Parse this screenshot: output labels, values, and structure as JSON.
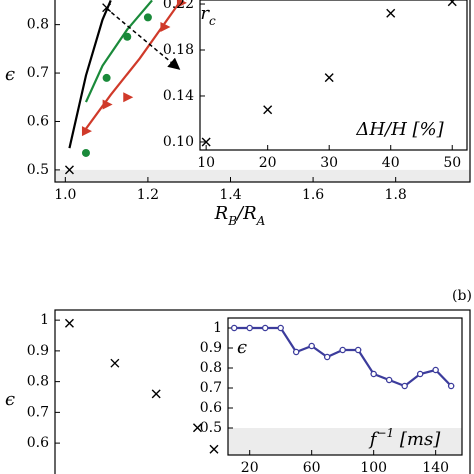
{
  "chart_data": [
    {
      "type": "line",
      "panel": "top-main",
      "x_label": [
        {
          "text": "R"
        },
        {
          "text": "B",
          "pos": "sub"
        },
        {
          "text": "/R"
        },
        {
          "text": "A",
          "pos": "sub"
        }
      ],
      "y_label": [
        {
          "text": "ϵ"
        }
      ],
      "xlim": [
        0.975,
        1.98
      ],
      "ylim": [
        0.475,
        0.855
      ],
      "xticks": [
        {
          "value": 1.0,
          "label": "1.0"
        },
        1.2,
        1.4,
        1.6,
        1.8
      ],
      "yticks": [
        0.5,
        0.6,
        0.7,
        0.8
      ],
      "shaded_below": 0.5,
      "series": [
        {
          "kind": "line",
          "color": "#000000",
          "x": [
            1.01,
            1.05,
            1.09,
            1.11
          ],
          "values": [
            0.545,
            0.695,
            0.81,
            0.85
          ]
        },
        {
          "kind": "line",
          "color": "#1a8a3a",
          "x": [
            1.05,
            1.09,
            1.15,
            1.21
          ],
          "values": [
            0.64,
            0.715,
            0.79,
            0.85
          ]
        },
        {
          "kind": "line",
          "color": "#d03a2a",
          "x": [
            1.05,
            1.11,
            1.18,
            1.28
          ],
          "values": [
            0.585,
            0.655,
            0.73,
            0.85
          ]
        },
        {
          "kind": "markers",
          "marker": "x",
          "color": "#000000",
          "x": [
            1.01,
            1.1
          ],
          "values": [
            0.5,
            0.835
          ]
        },
        {
          "kind": "markers",
          "marker": "circle",
          "color": "#1a8a3a",
          "x": [
            1.05,
            1.1,
            1.15,
            1.2
          ],
          "values": [
            0.535,
            0.69,
            0.775,
            0.815
          ]
        },
        {
          "kind": "markers",
          "marker": "triangle",
          "color": "#d03a2a",
          "x": [
            1.05,
            1.1,
            1.15,
            1.24,
            1.28
          ],
          "values": [
            0.58,
            0.635,
            0.65,
            0.795,
            0.845
          ]
        }
      ]
    },
    {
      "type": "scatter",
      "panel": "top-inset",
      "x_label": [
        {
          "text": "ΔH/H [%]"
        }
      ],
      "y_label": [
        {
          "text": "r"
        },
        {
          "text": "c",
          "pos": "sub"
        }
      ],
      "xlim": [
        9,
        52.4
      ],
      "ylim": [
        0.093,
        0.2235
      ],
      "xticks": [
        10,
        20,
        30,
        40,
        50
      ],
      "yticks": [
        {
          "value": 0.1,
          "label": "0.10"
        },
        0.14,
        0.18,
        0.22
      ],
      "series": [
        {
          "kind": "markers",
          "marker": "x",
          "color": "#000000",
          "x": [
            10,
            20,
            30,
            40,
            50
          ],
          "values": [
            0.1,
            0.128,
            0.156,
            0.212,
            0.222
          ]
        }
      ]
    },
    {
      "type": "scatter",
      "panel": "bottom-main",
      "panel_label": "(b)",
      "y_label": [
        {
          "text": "ϵ"
        }
      ],
      "xlim": [
        0.975,
        1.98
      ],
      "ylim": [
        0.48,
        1.033
      ],
      "yticks": [
        1,
        0.9,
        0.8,
        0.7,
        0.6
      ],
      "series": [
        {
          "kind": "markers",
          "marker": "x",
          "color": "#000000",
          "x": [
            1.01,
            1.12,
            1.22,
            1.32,
            1.36
          ],
          "values": [
            0.99,
            0.86,
            0.76,
            0.65,
            0.58
          ]
        }
      ]
    },
    {
      "type": "line",
      "panel": "bottom-inset",
      "x_label": [
        {
          "text": "f"
        },
        {
          "text": "−1",
          "pos": "sup"
        },
        {
          "text": " [ms]"
        }
      ],
      "y_label": [
        {
          "text": "ϵ"
        }
      ],
      "xlim": [
        6,
        157
      ],
      "ylim": [
        0.365,
        1.05
      ],
      "xticks": [
        20,
        60,
        100,
        140
      ],
      "yticks": [
        1,
        0.9,
        0.8,
        0.7,
        0.6,
        0.5
      ],
      "shaded_below": 0.5,
      "series": [
        {
          "kind": "line-markers",
          "marker": "open-circle",
          "color": "#3c3c9c",
          "x": [
            10,
            20,
            30,
            40,
            50,
            60,
            70,
            80,
            90,
            100,
            110,
            120,
            130,
            140,
            150
          ],
          "values": [
            1,
            1,
            1,
            1,
            0.88,
            0.91,
            0.855,
            0.89,
            0.89,
            0.77,
            0.74,
            0.71,
            0.77,
            0.79,
            0.71
          ]
        }
      ]
    }
  ]
}
